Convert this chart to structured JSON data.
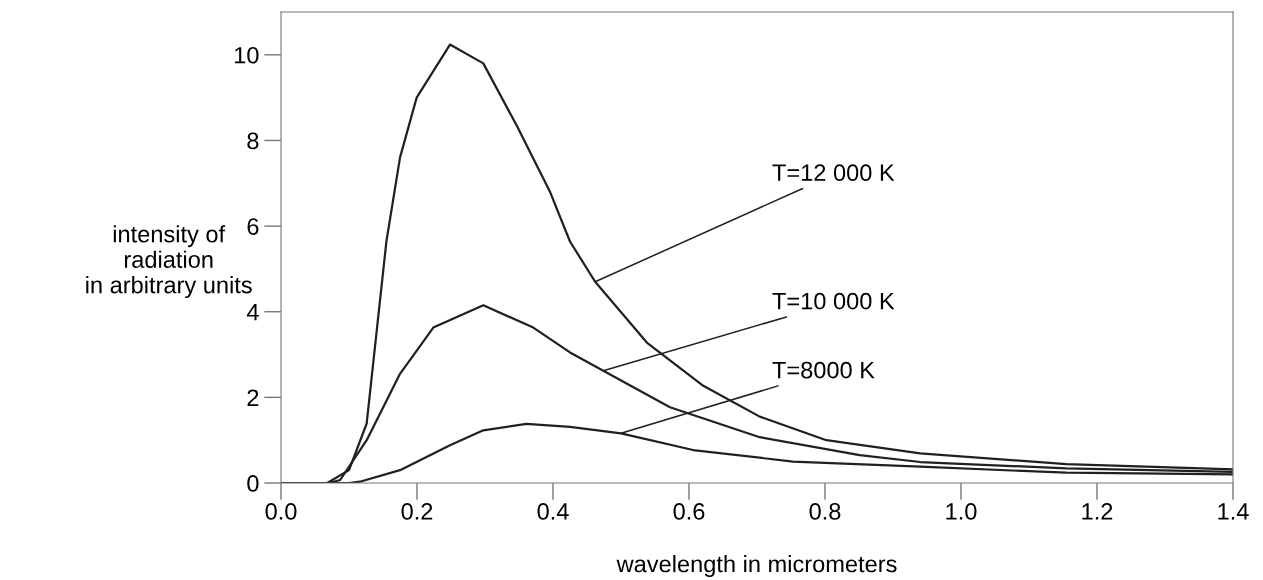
{
  "chart_data": {
    "type": "line",
    "xlabel": "wavelength in micrometers",
    "ylabel": "intensity of\nradiation\nin arbitrary units",
    "xlim": [
      0,
      1.4
    ],
    "ylim": [
      0,
      11
    ],
    "xticks": [
      {
        "value": 0,
        "label": "0.0"
      },
      0.2,
      0.4,
      0.6,
      0.8,
      {
        "value": 1,
        "label": "1.0"
      },
      1.2,
      1.4
    ],
    "yticks": [
      0,
      2,
      4,
      6,
      8,
      10
    ],
    "grid": false,
    "marker": "none",
    "line_style": "solid",
    "series": [
      {
        "color": "#231f20",
        "x": [
          0,
          0.068,
          0.1,
          0.126,
          0.155,
          0.175,
          0.1995,
          0.2485,
          0.2975,
          0.3466,
          0.3956,
          0.425,
          0.462,
          0.538,
          0.621,
          0.704,
          0.802,
          0.94,
          1.155,
          1.4
        ],
        "values": [
          0,
          0,
          0.3,
          1.39,
          5.64,
          7.6,
          9.0,
          10.24,
          9.8,
          8.35,
          6.8,
          5.64,
          4.7,
          3.28,
          2.27,
          1.55,
          1.0,
          0.69,
          0.44,
          0.32
        ]
      },
      {
        "color": "#231f20",
        "x": [
          0,
          0.07,
          0.087,
          0.126,
          0.175,
          0.224,
          0.2975,
          0.371,
          0.425,
          0.474,
          0.572,
          0.704,
          0.851,
          0.94,
          1.155,
          1.4
        ],
        "values": [
          0,
          0,
          0.07,
          1.0,
          2.55,
          3.63,
          4.15,
          3.63,
          3.05,
          2.62,
          1.77,
          1.07,
          0.65,
          0.49,
          0.34,
          0.26
        ]
      },
      {
        "color": "#231f20",
        "x": [
          0,
          0.1,
          0.116,
          0.175,
          0.2485,
          0.2975,
          0.361,
          0.425,
          0.5,
          0.606,
          0.753,
          0.94,
          1.155,
          1.4
        ],
        "values": [
          0,
          0,
          0.03,
          0.3,
          0.88,
          1.23,
          1.38,
          1.31,
          1.16,
          0.77,
          0.5,
          0.38,
          0.24,
          0.2
        ]
      }
    ],
    "annotations": [
      {
        "text": "T=12 000 K",
        "x": 0.462,
        "y": 4.7
      },
      {
        "text": "T=10 000 K",
        "x": 0.474,
        "y": 2.62
      },
      {
        "text": "T=8000 K",
        "x": 0.5,
        "y": 1.16
      }
    ]
  }
}
